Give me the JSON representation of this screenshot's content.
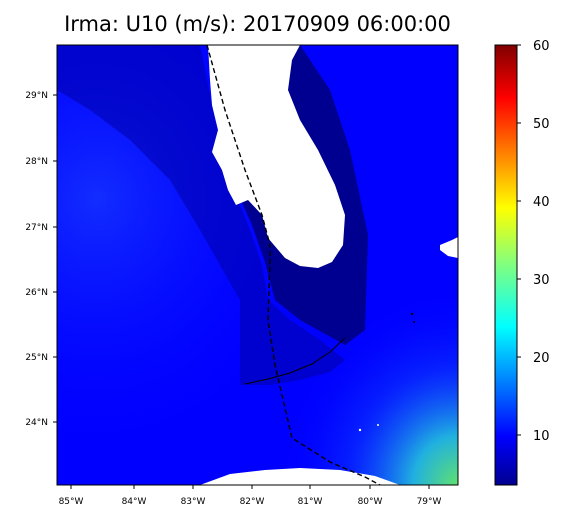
{
  "title": "Irma: U10 (m/s): 20170909 06:00:00",
  "map": {
    "lon_labels": [
      "85°W",
      "84°W",
      "83°W",
      "82°W",
      "81°W",
      "80°W",
      "79°W"
    ],
    "lat_labels": [
      "29°N",
      "28°N",
      "27°N",
      "26°N",
      "25°N",
      "24°N"
    ],
    "land_color": "#ffffff",
    "low_wind_color": "#00008f",
    "field_color": "#0000ff"
  },
  "colorbar": {
    "colormap": "jet",
    "min": 4,
    "max": 60,
    "tick_labels": [
      "10",
      "20",
      "30",
      "40",
      "50",
      "60"
    ]
  }
}
